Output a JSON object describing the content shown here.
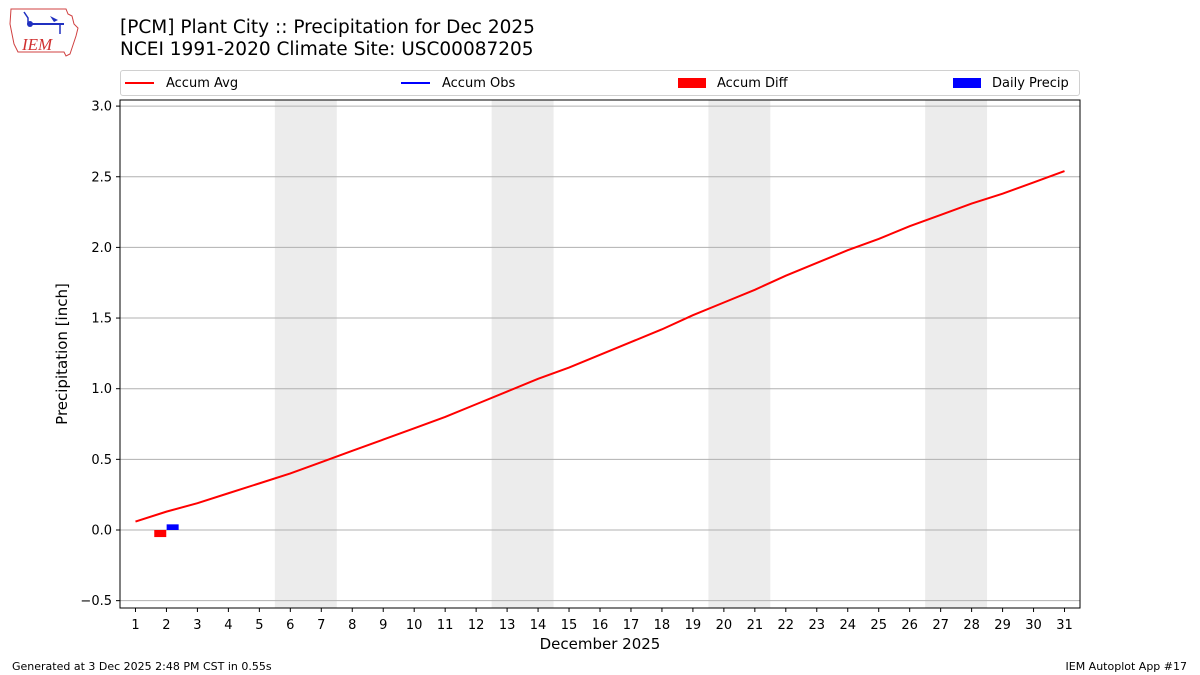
{
  "header": {
    "title_line1": "[PCM] Plant City :: Precipitation for Dec 2025",
    "title_line2": "NCEI 1991-2020 Climate Site: USC00087205",
    "logo_text": "IEM"
  },
  "legend": [
    {
      "label": "Accum Avg",
      "kind": "line",
      "color": "#ff0000"
    },
    {
      "label": "Accum Obs",
      "kind": "line",
      "color": "#0000ff"
    },
    {
      "label": "Accum Diff",
      "kind": "box",
      "color": "#ff0000"
    },
    {
      "label": "Daily Precip",
      "kind": "box",
      "color": "#0000ff"
    }
  ],
  "footer": {
    "generated": "Generated at 3 Dec 2025 2:48 PM CST in 0.55s",
    "app": "IEM Autoplot App #17"
  },
  "chart_data": {
    "type": "line",
    "title": "[PCM] Plant City :: Precipitation for Dec 2025 / NCEI 1991-2020 Climate Site: USC00087205",
    "xlabel": "December 2025",
    "ylabel": "Precipitation [inch]",
    "x": [
      1,
      2,
      3,
      4,
      5,
      6,
      7,
      8,
      9,
      10,
      11,
      12,
      13,
      14,
      15,
      16,
      17,
      18,
      19,
      20,
      21,
      22,
      23,
      24,
      25,
      26,
      27,
      28,
      29,
      30,
      31
    ],
    "xticks": [
      "1",
      "2",
      "3",
      "4",
      "5",
      "6",
      "7",
      "8",
      "9",
      "10",
      "11",
      "12",
      "13",
      "14",
      "15",
      "16",
      "17",
      "18",
      "19",
      "20",
      "21",
      "22",
      "23",
      "24",
      "25",
      "26",
      "27",
      "28",
      "29",
      "30",
      "31"
    ],
    "yticks": [
      "−0.5",
      "0.0",
      "0.5",
      "1.0",
      "1.5",
      "2.0",
      "2.5",
      "3.0"
    ],
    "ytick_values": [
      -0.5,
      0.0,
      0.5,
      1.0,
      1.5,
      2.0,
      2.5,
      3.0
    ],
    "ylim": [
      -0.55,
      3.04
    ],
    "xlim": [
      0.5,
      31.5
    ],
    "grid": "horizontal",
    "weekend_shading": [
      [
        5.5,
        7.5
      ],
      [
        12.5,
        14.5
      ],
      [
        19.5,
        21.5
      ],
      [
        26.5,
        28.5
      ]
    ],
    "legend_position": "top",
    "series": [
      {
        "name": "Accum Avg",
        "type": "line",
        "color": "#ff0000",
        "values": [
          0.06,
          0.13,
          0.19,
          0.26,
          0.33,
          0.4,
          0.48,
          0.56,
          0.64,
          0.72,
          0.8,
          0.89,
          0.98,
          1.07,
          1.15,
          1.24,
          1.33,
          1.42,
          1.52,
          1.61,
          1.7,
          1.8,
          1.89,
          1.98,
          2.06,
          2.15,
          2.23,
          2.31,
          2.38,
          2.46,
          2.54
        ]
      },
      {
        "name": "Accum Obs",
        "type": "line",
        "color": "#0000ff",
        "values": []
      },
      {
        "name": "Accum Diff",
        "type": "bar",
        "color": "#ff0000",
        "x": [
          2
        ],
        "values": [
          -0.05
        ],
        "offset": -0.2
      },
      {
        "name": "Daily Precip",
        "type": "bar",
        "color": "#0000ff",
        "x": [
          2
        ],
        "values": [
          0.04
        ],
        "offset": 0.2
      }
    ]
  }
}
